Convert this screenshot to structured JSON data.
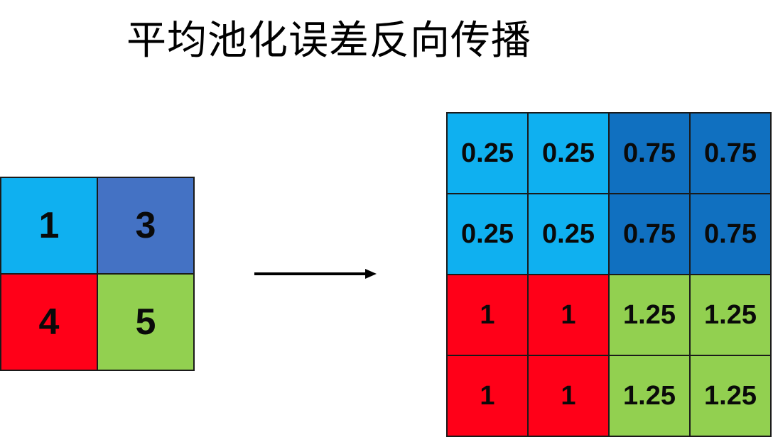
{
  "title": "平均池化误差反向传播",
  "colors": {
    "light_blue": "#0fb0f0",
    "slate_blue": "#4472c4",
    "dark_blue": "#1070c0",
    "red": "#ff0018",
    "green": "#92d050"
  },
  "input_grid": {
    "cells": [
      {
        "value": "1",
        "color": "#0fb0f0"
      },
      {
        "value": "3",
        "color": "#4472c4"
      },
      {
        "value": "4",
        "color": "#ff0018"
      },
      {
        "value": "5",
        "color": "#92d050"
      }
    ]
  },
  "arrow": {
    "icon": "right-arrow-icon"
  },
  "output_grid": {
    "cells": [
      {
        "value": "0.25",
        "color": "#0fb0f0"
      },
      {
        "value": "0.25",
        "color": "#0fb0f0"
      },
      {
        "value": "0.75",
        "color": "#1070c0"
      },
      {
        "value": "0.75",
        "color": "#1070c0"
      },
      {
        "value": "0.25",
        "color": "#0fb0f0"
      },
      {
        "value": "0.25",
        "color": "#0fb0f0"
      },
      {
        "value": "0.75",
        "color": "#1070c0"
      },
      {
        "value": "0.75",
        "color": "#1070c0"
      },
      {
        "value": "1",
        "color": "#ff0018"
      },
      {
        "value": "1",
        "color": "#ff0018"
      },
      {
        "value": "1.25",
        "color": "#92d050"
      },
      {
        "value": "1.25",
        "color": "#92d050"
      },
      {
        "value": "1",
        "color": "#ff0018"
      },
      {
        "value": "1",
        "color": "#ff0018"
      },
      {
        "value": "1.25",
        "color": "#92d050"
      },
      {
        "value": "1.25",
        "color": "#92d050"
      }
    ]
  }
}
